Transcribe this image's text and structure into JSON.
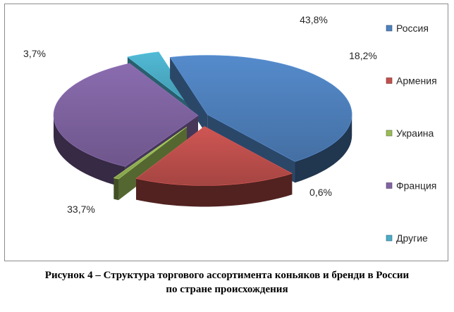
{
  "chart_data": {
    "type": "pie",
    "style": "3d-exploded",
    "slices": [
      {
        "label": "Россия",
        "value": 43.8,
        "display": "43,8%",
        "color": "#4F81BD"
      },
      {
        "label": "Армения",
        "value": 18.2,
        "display": "18,2%",
        "color": "#C0504D"
      },
      {
        "label": "Украина",
        "value": 0.6,
        "display": "0,6%",
        "color": "#9BBB59"
      },
      {
        "label": "Франция",
        "value": 33.7,
        "display": "33,7%",
        "color": "#8064A2"
      },
      {
        "label": "Другие",
        "value": 3.7,
        "display": "3,7%",
        "color": "#4BACC6"
      }
    ],
    "legend_position": "right"
  },
  "caption": {
    "line1": "Рисунок 4 – Структура торгового ассортимента коньяков и бренди в России",
    "line2": "по стране происхождения"
  }
}
